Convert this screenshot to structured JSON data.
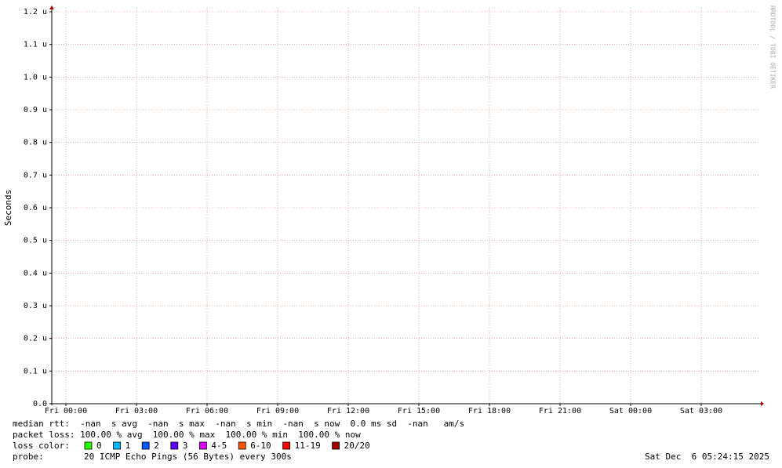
{
  "chart_data": {
    "type": "line",
    "y_label": "Seconds",
    "watermark": "RRDTOOL / TOBI OETIKER",
    "xlim": [
      -0.6,
      29.4
    ],
    "xticks": [
      {
        "value": 0,
        "label": "Fri 00:00"
      },
      {
        "value": 3,
        "label": "Fri 03:00"
      },
      {
        "value": 6,
        "label": "Fri 06:00"
      },
      {
        "value": 9,
        "label": "Fri 09:00"
      },
      {
        "value": 12,
        "label": "Fri 12:00"
      },
      {
        "value": 15,
        "label": "Fri 15:00"
      },
      {
        "value": 18,
        "label": "Fri 18:00"
      },
      {
        "value": 21,
        "label": "Fri 21:00"
      },
      {
        "value": 24,
        "label": "Sat 00:00"
      },
      {
        "value": 27,
        "label": "Sat 03:00"
      }
    ],
    "ylim": [
      0,
      1.2e-06
    ],
    "yticks": [
      {
        "value": 0,
        "label": "0.0"
      },
      {
        "value": 1e-07,
        "label": "0.1 u"
      },
      {
        "value": 2e-07,
        "label": "0.2 u"
      },
      {
        "value": 3e-07,
        "label": "0.3 u"
      },
      {
        "value": 4e-07,
        "label": "0.4 u"
      },
      {
        "value": 5e-07,
        "label": "0.5 u"
      },
      {
        "value": 6e-07,
        "label": "0.6 u"
      },
      {
        "value": 7e-07,
        "label": "0.7 u"
      },
      {
        "value": 8e-07,
        "label": "0.8 u"
      },
      {
        "value": 9e-07,
        "label": "0.9 u"
      },
      {
        "value": 1e-06,
        "label": "1.0 u"
      },
      {
        "value": 1.1e-06,
        "label": "1.1 u"
      },
      {
        "value": 1.2e-06,
        "label": "1.2 u"
      }
    ],
    "grid": true,
    "series": []
  },
  "legend": {
    "median_rtt": "median rtt:  -nan  s avg  -nan  s max  -nan  s min  -nan  s now  0.0 ms sd  -nan   am/s",
    "packet_loss": "packet loss: 100.00 % avg  100.00 % max  100.00 % min  100.00 % now",
    "loss_color_label": "loss color:",
    "loss_colors": [
      {
        "name": "0",
        "color": "#26ff00"
      },
      {
        "name": "1",
        "color": "#00b8ff"
      },
      {
        "name": "2",
        "color": "#0059ff"
      },
      {
        "name": "3",
        "color": "#5e00ff"
      },
      {
        "name": "4-5",
        "color": "#dd00ff"
      },
      {
        "name": "6-10",
        "color": "#ff5500"
      },
      {
        "name": "11-19",
        "color": "#ff0000"
      },
      {
        "name": "20/20",
        "color": "#a10000"
      }
    ],
    "probe_label": "probe:",
    "probe": "20 ICMP Echo Pings (56 Bytes) every 300s",
    "timestamp": "Sat Dec  6 05:24:15 2025"
  }
}
